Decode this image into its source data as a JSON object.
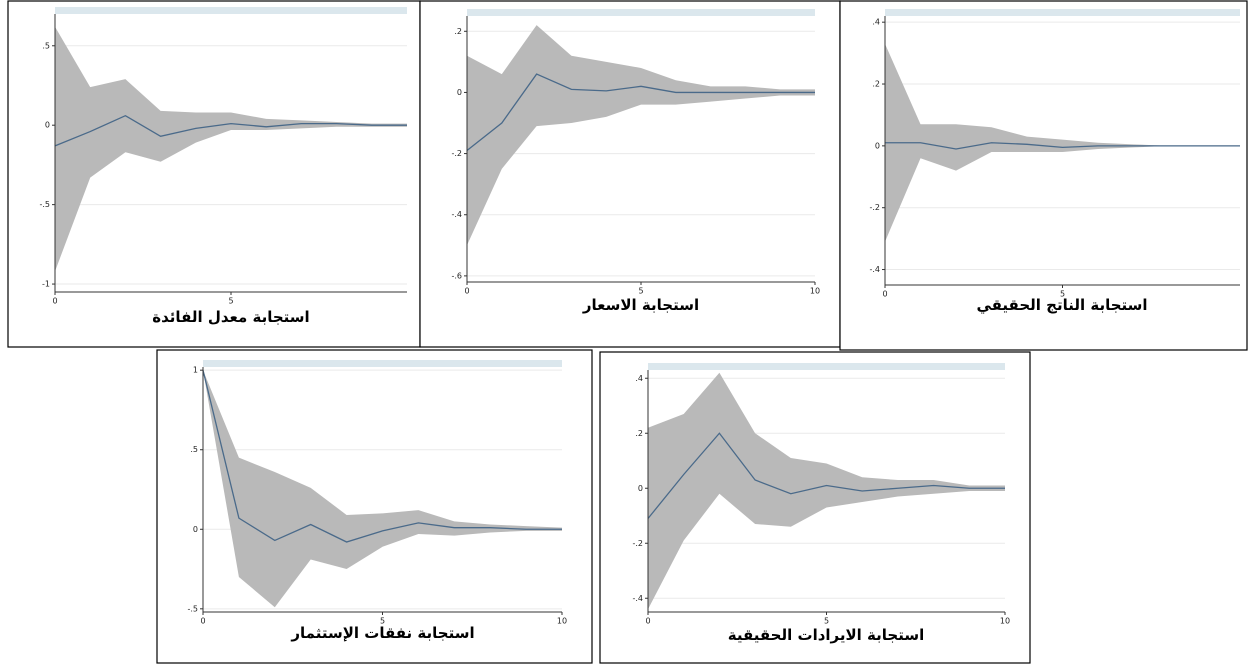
{
  "chart_data": [
    {
      "type": "line",
      "title": "استجابة معدل الفائدة",
      "x": [
        0,
        1,
        2,
        3,
        4,
        5,
        6,
        7,
        8,
        9,
        10
      ],
      "values": [
        -0.13,
        -0.04,
        0.06,
        -0.07,
        -0.02,
        0.01,
        -0.01,
        0.01,
        0.01,
        0,
        0
      ],
      "upper": [
        0.62,
        0.24,
        0.29,
        0.09,
        0.08,
        0.08,
        0.04,
        0.03,
        0.02,
        0.01,
        0.01
      ],
      "lower": [
        -0.92,
        -0.33,
        -0.17,
        -0.23,
        -0.11,
        -0.03,
        -0.03,
        -0.02,
        -0.01,
        -0.01,
        -0.01
      ],
      "color": "#4a6a8a",
      "band_color": "#b9b9b9",
      "xlim": [
        0,
        10
      ],
      "ylim": [
        -1.05,
        0.7
      ],
      "xticks": [
        0,
        5
      ],
      "yticks": [
        {
          "value": 0.5,
          "label": ".5"
        },
        0,
        {
          "value": -0.5,
          "label": "-.5"
        },
        -1
      ],
      "grid": true
    },
    {
      "type": "line",
      "title": "استجابة الاسعار",
      "x": [
        0,
        1,
        2,
        3,
        4,
        5,
        6,
        7,
        8,
        9,
        10
      ],
      "values": [
        -0.19,
        -0.1,
        0.06,
        0.01,
        0.005,
        0.02,
        0,
        0,
        0,
        0,
        0
      ],
      "upper": [
        0.12,
        0.06,
        0.22,
        0.12,
        0.1,
        0.08,
        0.04,
        0.02,
        0.02,
        0.01,
        0.01
      ],
      "lower": [
        -0.5,
        -0.25,
        -0.11,
        -0.1,
        -0.08,
        -0.04,
        -0.04,
        -0.03,
        -0.02,
        -0.01,
        -0.01
      ],
      "color": "#4a6a8a",
      "band_color": "#b9b9b9",
      "xlim": [
        0,
        10
      ],
      "ylim": [
        -0.62,
        0.25
      ],
      "xticks": [
        0,
        5,
        10
      ],
      "yticks": [
        {
          "value": 0.2,
          "label": ".2"
        },
        0,
        {
          "value": -0.2,
          "label": "-.2"
        },
        {
          "value": -0.4,
          "label": "-.4"
        },
        {
          "value": -0.6,
          "label": "-.6"
        }
      ],
      "grid": true
    },
    {
      "type": "line",
      "title": "استجابة الناتج الحقيقي",
      "x": [
        0,
        1,
        2,
        3,
        4,
        5,
        6,
        7,
        8,
        9,
        10
      ],
      "values": [
        0.01,
        0.01,
        -0.01,
        0.01,
        0.005,
        -0.005,
        0,
        0,
        0,
        0,
        0
      ],
      "upper": [
        0.33,
        0.07,
        0.07,
        0.06,
        0.03,
        0.02,
        0.01,
        0.005,
        0,
        0,
        0
      ],
      "lower": [
        -0.31,
        -0.04,
        -0.08,
        -0.02,
        -0.02,
        -0.02,
        -0.01,
        -0.005,
        0,
        0,
        0
      ],
      "color": "#4a6a8a",
      "band_color": "#b9b9b9",
      "xlim": [
        0,
        10
      ],
      "ylim": [
        -0.45,
        0.42
      ],
      "xticks": [
        0,
        5
      ],
      "yticks": [
        {
          "value": 0.4,
          "label": ".4"
        },
        {
          "value": 0.2,
          "label": ".2"
        },
        0,
        {
          "value": -0.2,
          "label": "-.2"
        },
        {
          "value": -0.4,
          "label": "-.4"
        }
      ],
      "grid": true
    },
    {
      "type": "line",
      "title": "استجابة نفقات  الإستثمار",
      "x": [
        0,
        1,
        2,
        3,
        4,
        5,
        6,
        7,
        8,
        9,
        10
      ],
      "values": [
        1,
        0.07,
        -0.07,
        0.03,
        -0.08,
        -0.01,
        0.04,
        0.01,
        0.01,
        0,
        0
      ],
      "upper": [
        1,
        0.45,
        0.36,
        0.26,
        0.09,
        0.1,
        0.12,
        0.05,
        0.03,
        0.02,
        0.01
      ],
      "lower": [
        1,
        -0.3,
        -0.49,
        -0.19,
        -0.25,
        -0.11,
        -0.03,
        -0.04,
        -0.02,
        -0.01,
        -0.01
      ],
      "color": "#4a6a8a",
      "band_color": "#b9b9b9",
      "xlim": [
        0,
        10
      ],
      "ylim": [
        -0.52,
        1.02
      ],
      "xticks": [
        0,
        5,
        10
      ],
      "yticks": [
        1,
        {
          "value": 0.5,
          "label": ".5"
        },
        0,
        {
          "value": -0.5,
          "label": "-.5"
        }
      ],
      "grid": true
    },
    {
      "type": "line",
      "title": "استجابة الايرادات الحقيقية",
      "x": [
        0,
        1,
        2,
        3,
        4,
        5,
        6,
        7,
        8,
        9,
        10
      ],
      "values": [
        -0.11,
        0.05,
        0.2,
        0.03,
        -0.02,
        0.01,
        -0.01,
        0,
        0.01,
        0,
        0
      ],
      "upper": [
        0.22,
        0.27,
        0.42,
        0.2,
        0.11,
        0.09,
        0.04,
        0.03,
        0.03,
        0.01,
        0.01
      ],
      "lower": [
        -0.44,
        -0.19,
        -0.02,
        -0.13,
        -0.14,
        -0.07,
        -0.05,
        -0.03,
        -0.02,
        -0.01,
        -0.01
      ],
      "color": "#4a6a8a",
      "band_color": "#b9b9b9",
      "xlim": [
        0,
        10
      ],
      "ylim": [
        -0.45,
        0.43
      ],
      "xticks": [
        0,
        5,
        10
      ],
      "yticks": [
        {
          "value": 0.4,
          "label": ".4"
        },
        {
          "value": 0.2,
          "label": ".2"
        },
        0,
        {
          "value": -0.2,
          "label": "-.2"
        },
        {
          "value": -0.4,
          "label": "-.4"
        }
      ],
      "grid": true
    }
  ]
}
